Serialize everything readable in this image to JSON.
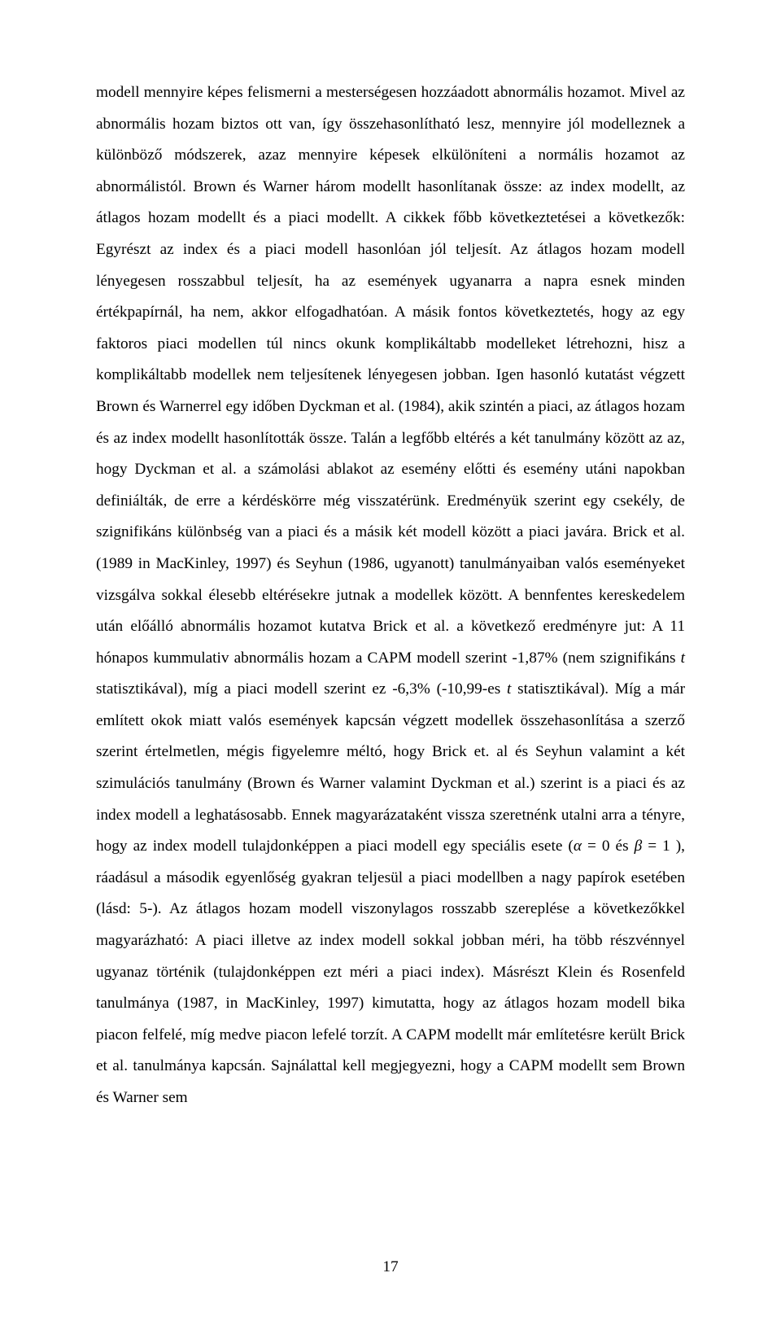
{
  "page": {
    "number": "17",
    "font_family": "Times New Roman",
    "font_size_pt": 12,
    "line_spacing": 1.5,
    "text_color": "#000000",
    "background_color": "#ffffff",
    "alignment": "justify"
  },
  "paragraph": {
    "segments": [
      {
        "text": "modell mennyire képes felismerni a mesterségesen hozzáadott abnormális hozamot. Mivel az abnormális hozam biztos ott van, így összehasonlítható lesz, mennyire jól modelleznek a különböző módszerek, azaz mennyire képesek elkülöníteni a normális hozamot az abnormálistól. Brown és Warner három modellt hasonlítanak össze: az index modellt, az átlagos hozam modellt és a piaci modellt. A cikkek főbb következtetései a következők: Egyrészt az index és a piaci modell hasonlóan jól teljesít. Az átlagos hozam modell lényegesen rosszabbul teljesít, ha az események ugyanarra a napra esnek minden értékpapírnál, ha nem, akkor elfogadhatóan. A másik fontos következtetés, hogy az egy faktoros piaci modellen túl nincs okunk komplikáltabb modelleket létrehozni, hisz a komplikáltabb modellek nem teljesítenek lényegesen jobban. Igen hasonló kutatást végzett Brown és Warnerrel egy időben Dyckman et al. (1984), akik szintén a piaci, az átlagos hozam és az index modellt hasonlították össze. Talán a legfőbb eltérés a két tanulmány között az az, hogy Dyckman et al. a számolási ablakot az esemény előtti és esemény utáni napokban definiálták, de erre a kérdéskörre még visszatérünk. Eredményük szerint egy csekély, de szignifikáns különbség van a piaci és a másik két modell között a piaci javára. Brick et al. (1989 in MacKinley, 1997) és Seyhun (1986, ugyanott) tanulmányaiban valós eseményeket vizsgálva sokkal élesebb eltérésekre jutnak a modellek között. A bennfentes kereskedelem után előálló abnormális hozamot kutatva Brick et al. a  következő eredményre jut: A 11 hónapos kummulativ abnormális hozam a CAPM modell szerint -1,87% (nem szignifikáns ",
        "italic": false
      },
      {
        "text": "t",
        "italic": true
      },
      {
        "text": " statisztikával), míg a piaci modell szerint ez -6,3% (-10,99-es ",
        "italic": false
      },
      {
        "text": "t",
        "italic": true
      },
      {
        "text": " statisztikával). Míg a már említett okok miatt valós események kapcsán végzett modellek összehasonlítása a szerző szerint értelmetlen, mégis figyelemre méltó, hogy Brick et. al és Seyhun valamint a két szimulációs tanulmány (Brown és Warner valamint Dyckman et al.) szerint is a piaci és az index modell a leghatásosabb. Ennek magyarázataként vissza szeretnénk utalni arra a tényre, hogy az index modell tulajdonképpen a piaci modell egy speciális esete (",
        "italic": false
      },
      {
        "text": "α",
        "italic": true
      },
      {
        "text": " = 0 és ",
        "italic": false
      },
      {
        "text": "β",
        "italic": true
      },
      {
        "text": " = 1 ), ráadásul a második egyenlőség gyakran teljesül a piaci modellben a nagy papírok esetében (lásd: ",
        "italic": false
      },
      {
        "text": " 5-). Az átlagos hozam modell viszonylagos rosszabb szereplése a következőkkel magyarázható: A piaci illetve az index modell sokkal jobban méri, ha több részvénnyel ugyanaz történik (tulajdonképpen ezt méri a piaci index). Másrészt Klein és Rosenfeld tanulmánya (1987, in MacKinley, 1997) kimutatta, hogy az átlagos hozam modell bika piacon felfelé, míg medve piacon lefelé torzít. A CAPM modellt már említetésre került Brick et al. tanulmánya kapcsán. Sajnálattal kell megjegyezni, hogy a CAPM modellt sem Brown és Warner sem",
        "italic": false
      }
    ]
  }
}
